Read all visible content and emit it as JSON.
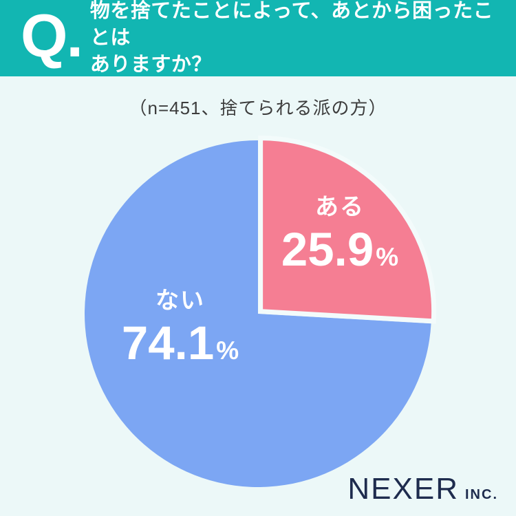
{
  "header": {
    "q_mark": "Q.",
    "question_line1": "物を捨てたことによって、あとから困ったことは",
    "question_line2": "ありますか？",
    "bg_color": "#12b6b2",
    "text_color": "#ffffff"
  },
  "subtitle": "（n=451、捨てられる派の方）",
  "chart_data": {
    "type": "pie",
    "title": "物を捨てたことによって、あとから困ったことはありますか？",
    "subtitle": "（n=451、捨てられる派の方）",
    "sample_size": 451,
    "start_angle_deg": 0,
    "direction": "clockwise",
    "legend_position": "inside",
    "label_color": "#ffffff",
    "slices": [
      {
        "label": "ある",
        "value": 25.9,
        "value_text": "25.9",
        "percent_sign": "%",
        "color": "#f57e93",
        "exploded": true
      },
      {
        "label": "ない",
        "value": 74.1,
        "value_text": "74.1",
        "percent_sign": "%",
        "color": "#7ca6f3",
        "exploded": false
      }
    ]
  },
  "footer": {
    "logo_main": "NEXER",
    "logo_suffix": "INC.",
    "logo_color": "#1e2c4e"
  },
  "colors": {
    "background": "#ecf8f8",
    "separator": "#f3fbfb"
  }
}
